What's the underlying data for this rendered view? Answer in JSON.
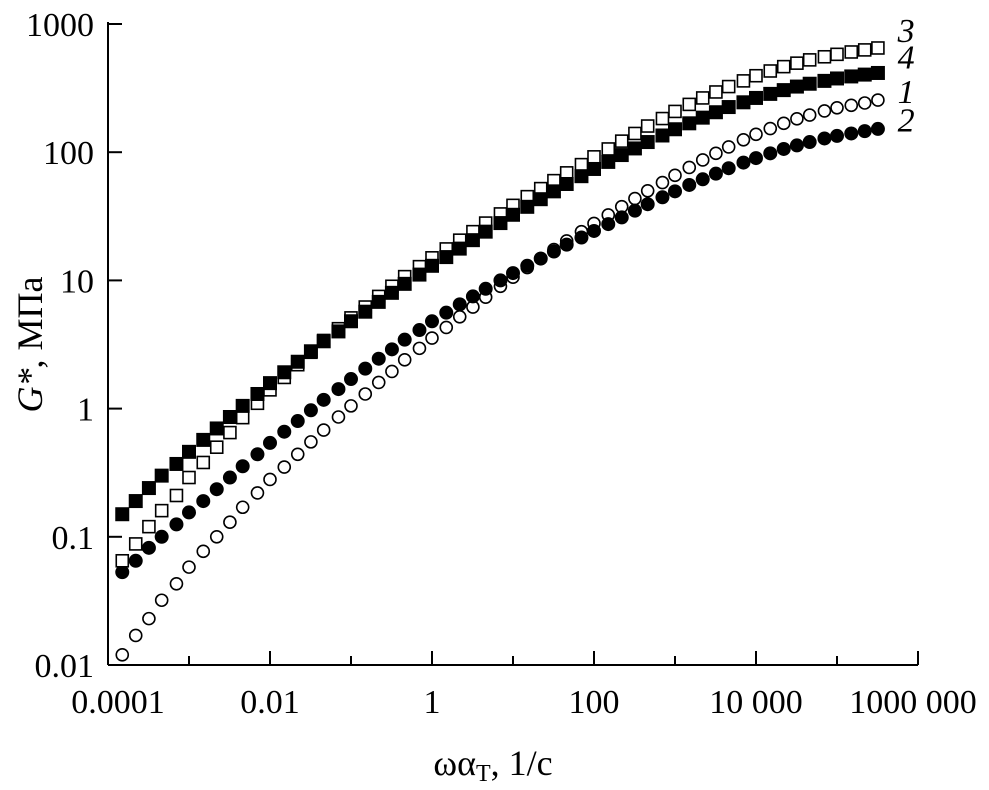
{
  "chart_data": {
    "type": "scatter",
    "title": "",
    "xlabel_main": "ωα",
    "xlabel_sub": "T",
    "xlabel_tail": ", 1/c",
    "ylabel_main": "G*",
    "ylabel_tail": ", МПа",
    "x_scale": "log",
    "y_scale": "log",
    "xlim": [
      0.0001,
      1000000
    ],
    "ylim": [
      0.01,
      1000
    ],
    "grid": false,
    "x_ticks": [
      {
        "value": 0.0001,
        "label": "0.0001"
      },
      {
        "value": 0.01,
        "label": "0.01"
      },
      {
        "value": 1,
        "label": "1"
      },
      {
        "value": 100,
        "label": "100"
      },
      {
        "value": 10000,
        "label": "10 000"
      },
      {
        "value": 1000000,
        "label": "1000 000"
      }
    ],
    "y_ticks": [
      {
        "value": 0.01,
        "label": "0.01"
      },
      {
        "value": 0.1,
        "label": "0.1"
      },
      {
        "value": 1,
        "label": "1"
      },
      {
        "value": 10,
        "label": "10"
      },
      {
        "value": 100,
        "label": "100"
      },
      {
        "value": 1000,
        "label": "1000"
      }
    ],
    "series": [
      {
        "name": "1",
        "marker": "open-circle",
        "points": [
          [
            0.00015,
            0.012
          ],
          [
            0.00022,
            0.017
          ],
          [
            0.00032,
            0.023
          ],
          [
            0.00046,
            0.032
          ],
          [
            0.0007,
            0.043
          ],
          [
            0.001,
            0.058
          ],
          [
            0.0015,
            0.077
          ],
          [
            0.0022,
            0.1
          ],
          [
            0.0032,
            0.13
          ],
          [
            0.0046,
            0.17
          ],
          [
            0.007,
            0.22
          ],
          [
            0.01,
            0.28
          ],
          [
            0.015,
            0.35
          ],
          [
            0.022,
            0.44
          ],
          [
            0.032,
            0.55
          ],
          [
            0.046,
            0.68
          ],
          [
            0.07,
            0.86
          ],
          [
            0.1,
            1.05
          ],
          [
            0.15,
            1.3
          ],
          [
            0.22,
            1.6
          ],
          [
            0.32,
            1.95
          ],
          [
            0.46,
            2.4
          ],
          [
            0.7,
            2.95
          ],
          [
            1,
            3.55
          ],
          [
            1.5,
            4.3
          ],
          [
            2.2,
            5.2
          ],
          [
            3.2,
            6.2
          ],
          [
            4.6,
            7.4
          ],
          [
            7,
            9.0
          ],
          [
            10,
            10.6
          ],
          [
            15,
            12.6
          ],
          [
            22,
            14.8
          ],
          [
            32,
            17.4
          ],
          [
            46,
            20.3
          ],
          [
            70,
            24
          ],
          [
            100,
            27.8
          ],
          [
            150,
            32.4
          ],
          [
            220,
            37.6
          ],
          [
            320,
            43.5
          ],
          [
            460,
            50
          ],
          [
            700,
            58
          ],
          [
            1000,
            66
          ],
          [
            1500,
            76
          ],
          [
            2200,
            87
          ],
          [
            3200,
            98
          ],
          [
            4600,
            110
          ],
          [
            7000,
            125
          ],
          [
            10000,
            138
          ],
          [
            15000,
            153
          ],
          [
            22000,
            168
          ],
          [
            32000,
            182
          ],
          [
            46000,
            195
          ],
          [
            70000,
            210
          ],
          [
            100000,
            222
          ],
          [
            150000,
            232
          ],
          [
            220000,
            242
          ],
          [
            320000,
            255
          ]
        ]
      },
      {
        "name": "2",
        "marker": "filled-circle",
        "points": [
          [
            0.00015,
            0.053
          ],
          [
            0.00022,
            0.065
          ],
          [
            0.00032,
            0.082
          ],
          [
            0.00046,
            0.1
          ],
          [
            0.0007,
            0.125
          ],
          [
            0.001,
            0.155
          ],
          [
            0.0015,
            0.19
          ],
          [
            0.0022,
            0.235
          ],
          [
            0.0032,
            0.29
          ],
          [
            0.0046,
            0.355
          ],
          [
            0.007,
            0.44
          ],
          [
            0.01,
            0.54
          ],
          [
            0.015,
            0.66
          ],
          [
            0.022,
            0.8
          ],
          [
            0.032,
            0.97
          ],
          [
            0.046,
            1.17
          ],
          [
            0.07,
            1.42
          ],
          [
            0.1,
            1.7
          ],
          [
            0.15,
            2.05
          ],
          [
            0.22,
            2.45
          ],
          [
            0.32,
            2.9
          ],
          [
            0.46,
            3.45
          ],
          [
            0.7,
            4.1
          ],
          [
            1,
            4.8
          ],
          [
            1.5,
            5.6
          ],
          [
            2.2,
            6.5
          ],
          [
            3.2,
            7.5
          ],
          [
            4.6,
            8.6
          ],
          [
            7,
            10
          ],
          [
            10,
            11.4
          ],
          [
            15,
            13
          ],
          [
            22,
            14.8
          ],
          [
            32,
            16.8
          ],
          [
            46,
            19
          ],
          [
            70,
            21.6
          ],
          [
            100,
            24.3
          ],
          [
            150,
            27.5
          ],
          [
            220,
            31
          ],
          [
            320,
            35
          ],
          [
            460,
            39.3
          ],
          [
            700,
            44.5
          ],
          [
            1000,
            49.5
          ],
          [
            1500,
            55.5
          ],
          [
            2200,
            61.5
          ],
          [
            3200,
            68
          ],
          [
            4600,
            75
          ],
          [
            7000,
            83
          ],
          [
            10000,
            90
          ],
          [
            15000,
            98
          ],
          [
            22000,
            106
          ],
          [
            32000,
            113
          ],
          [
            46000,
            120
          ],
          [
            70000,
            128
          ],
          [
            100000,
            134
          ],
          [
            150000,
            140
          ],
          [
            220000,
            146
          ],
          [
            320000,
            152
          ]
        ]
      },
      {
        "name": "3",
        "marker": "open-square",
        "points": [
          [
            0.00015,
            0.065
          ],
          [
            0.00022,
            0.088
          ],
          [
            0.00032,
            0.12
          ],
          [
            0.00046,
            0.16
          ],
          [
            0.0007,
            0.21
          ],
          [
            0.001,
            0.29
          ],
          [
            0.0015,
            0.38
          ],
          [
            0.0022,
            0.5
          ],
          [
            0.0032,
            0.65
          ],
          [
            0.0046,
            0.85
          ],
          [
            0.007,
            1.1
          ],
          [
            0.01,
            1.4
          ],
          [
            0.015,
            1.75
          ],
          [
            0.022,
            2.2
          ],
          [
            0.032,
            2.75
          ],
          [
            0.046,
            3.4
          ],
          [
            0.07,
            4.2
          ],
          [
            0.1,
            5.1
          ],
          [
            0.15,
            6.2
          ],
          [
            0.22,
            7.5
          ],
          [
            0.32,
            9.0
          ],
          [
            0.46,
            10.7
          ],
          [
            0.7,
            12.8
          ],
          [
            1,
            15
          ],
          [
            1.5,
            17.6
          ],
          [
            2.2,
            20.6
          ],
          [
            3.2,
            24
          ],
          [
            4.6,
            28
          ],
          [
            7,
            33
          ],
          [
            10,
            38.5
          ],
          [
            15,
            45
          ],
          [
            22,
            52
          ],
          [
            32,
            60
          ],
          [
            46,
            69
          ],
          [
            70,
            80
          ],
          [
            100,
            92
          ],
          [
            150,
            106
          ],
          [
            220,
            122
          ],
          [
            320,
            140
          ],
          [
            460,
            160
          ],
          [
            700,
            183
          ],
          [
            1000,
            208
          ],
          [
            1500,
            236
          ],
          [
            2200,
            265
          ],
          [
            3200,
            295
          ],
          [
            4600,
            325
          ],
          [
            7000,
            360
          ],
          [
            10000,
            395
          ],
          [
            15000,
            430
          ],
          [
            22000,
            465
          ],
          [
            32000,
            495
          ],
          [
            46000,
            525
          ],
          [
            70000,
            555
          ],
          [
            100000,
            580
          ],
          [
            150000,
            605
          ],
          [
            220000,
            628
          ],
          [
            320000,
            650
          ]
        ]
      },
      {
        "name": "4",
        "marker": "filled-square",
        "points": [
          [
            0.00015,
            0.15
          ],
          [
            0.00022,
            0.19
          ],
          [
            0.00032,
            0.24
          ],
          [
            0.00046,
            0.3
          ],
          [
            0.0007,
            0.37
          ],
          [
            0.001,
            0.46
          ],
          [
            0.0015,
            0.57
          ],
          [
            0.0022,
            0.7
          ],
          [
            0.0032,
            0.86
          ],
          [
            0.0046,
            1.05
          ],
          [
            0.007,
            1.3
          ],
          [
            0.01,
            1.58
          ],
          [
            0.015,
            1.92
          ],
          [
            0.022,
            2.32
          ],
          [
            0.032,
            2.8
          ],
          [
            0.046,
            3.35
          ],
          [
            0.07,
            4.0
          ],
          [
            0.1,
            4.8
          ],
          [
            0.15,
            5.7
          ],
          [
            0.22,
            6.8
          ],
          [
            0.32,
            8.0
          ],
          [
            0.46,
            9.4
          ],
          [
            0.7,
            11.1
          ],
          [
            1,
            13
          ],
          [
            1.5,
            15.2
          ],
          [
            2.2,
            17.7
          ],
          [
            3.2,
            20.6
          ],
          [
            4.6,
            24
          ],
          [
            7,
            28
          ],
          [
            10,
            32.5
          ],
          [
            15,
            37.5
          ],
          [
            22,
            43
          ],
          [
            32,
            49.5
          ],
          [
            46,
            56.5
          ],
          [
            70,
            65
          ],
          [
            100,
            74
          ],
          [
            150,
            84
          ],
          [
            220,
            95
          ],
          [
            320,
            107
          ],
          [
            460,
            120
          ],
          [
            700,
            135
          ],
          [
            1000,
            151
          ],
          [
            1500,
            168
          ],
          [
            2200,
            186
          ],
          [
            3200,
            205
          ],
          [
            4600,
            225
          ],
          [
            7000,
            245
          ],
          [
            10000,
            265
          ],
          [
            15000,
            285
          ],
          [
            22000,
            305
          ],
          [
            32000,
            325
          ],
          [
            46000,
            342
          ],
          [
            70000,
            360
          ],
          [
            100000,
            376
          ],
          [
            150000,
            390
          ],
          [
            220000,
            403
          ],
          [
            320000,
            415
          ]
        ]
      }
    ],
    "labels": [
      {
        "text": "3",
        "near_value": [
          300000,
          900
        ]
      },
      {
        "text": "4",
        "near_value": [
          300000,
          560
        ]
      },
      {
        "text": "1",
        "near_value": [
          300000,
          300
        ]
      },
      {
        "text": "2",
        "near_value": [
          300000,
          180
        ]
      }
    ]
  }
}
